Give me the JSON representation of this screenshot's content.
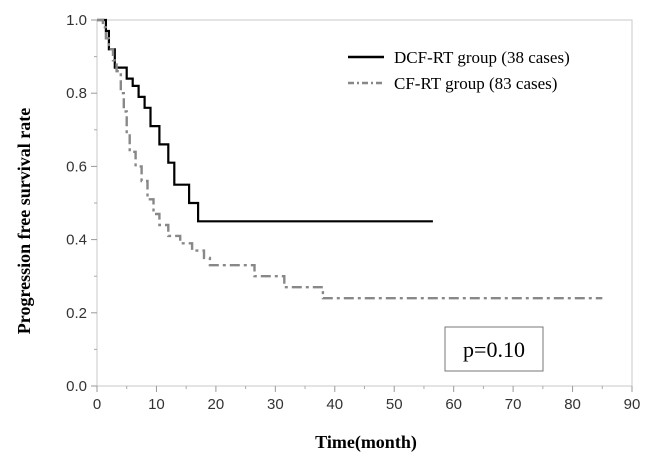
{
  "chart_data": {
    "type": "line",
    "subtype": "kaplan-meier step curve",
    "xlabel": "Time(month)",
    "ylabel": "Progression free survival rate",
    "xlim": [
      0,
      90
    ],
    "ylim": [
      0,
      1.0
    ],
    "x_ticks": [
      "0",
      "10",
      "20",
      "30",
      "40",
      "50",
      "60",
      "70",
      "80",
      "90"
    ],
    "y_ticks": [
      "0.0",
      "0.2",
      "0.4",
      "0.6",
      "0.8",
      "1.0"
    ],
    "grid": false,
    "legend_position": "top-right",
    "annotation": "p=0.10",
    "series": [
      {
        "name": "DCF-RT group (38 cases)",
        "color": "#000000",
        "dash": "solid",
        "points": [
          [
            0,
            1.0
          ],
          [
            1,
            1.0
          ],
          [
            1.5,
            0.97
          ],
          [
            2,
            0.92
          ],
          [
            3,
            0.87
          ],
          [
            5,
            0.84
          ],
          [
            6,
            0.82
          ],
          [
            7,
            0.79
          ],
          [
            8,
            0.76
          ],
          [
            9,
            0.71
          ],
          [
            10.5,
            0.66
          ],
          [
            12,
            0.61
          ],
          [
            13,
            0.55
          ],
          [
            15.5,
            0.5
          ],
          [
            17,
            0.45
          ],
          [
            56.5,
            0.45
          ]
        ]
      },
      {
        "name": "CF-RT group (83 cases)",
        "color": "#888888",
        "dash": "dashdot",
        "points": [
          [
            0,
            1.0
          ],
          [
            1,
            0.98
          ],
          [
            1.5,
            0.95
          ],
          [
            2,
            0.92
          ],
          [
            2.7,
            0.89
          ],
          [
            3.3,
            0.86
          ],
          [
            4,
            0.8
          ],
          [
            4.5,
            0.75
          ],
          [
            5,
            0.69
          ],
          [
            5.5,
            0.64
          ],
          [
            6.5,
            0.6
          ],
          [
            7.5,
            0.56
          ],
          [
            8.5,
            0.51
          ],
          [
            9.5,
            0.47
          ],
          [
            10.5,
            0.44
          ],
          [
            12,
            0.41
          ],
          [
            14,
            0.39
          ],
          [
            16,
            0.37
          ],
          [
            18,
            0.35
          ],
          [
            19,
            0.33
          ],
          [
            26.5,
            0.3
          ],
          [
            31.5,
            0.27
          ],
          [
            38,
            0.24
          ],
          [
            85,
            0.24
          ]
        ]
      }
    ]
  }
}
